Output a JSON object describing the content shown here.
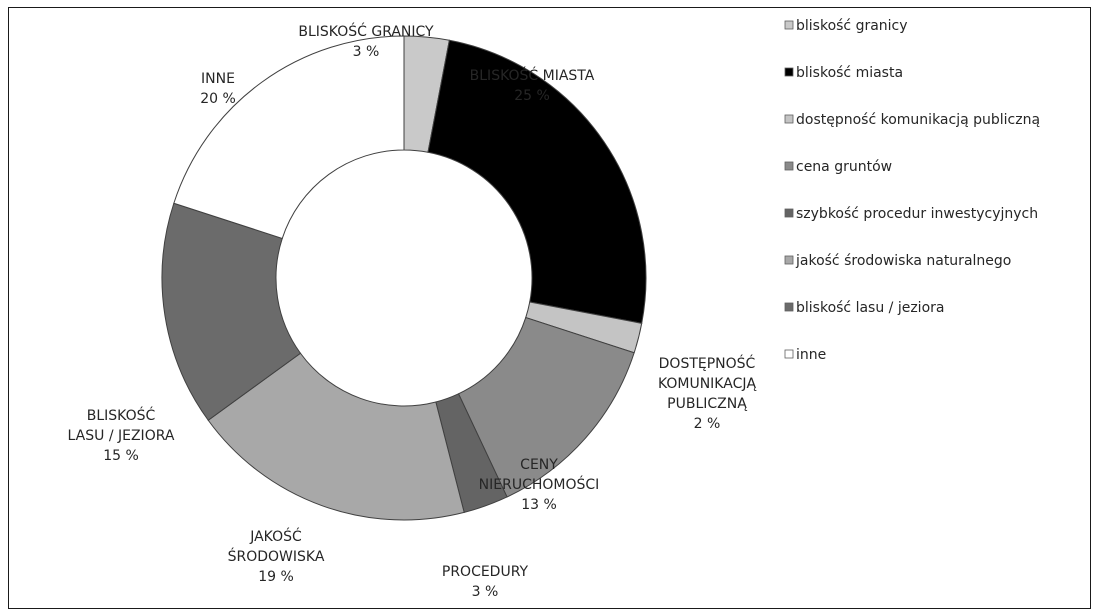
{
  "chart_data": {
    "type": "pie",
    "variant": "donut",
    "legend_position": "right",
    "slices": [
      {
        "key": "granicy",
        "label_lines": [
          "BLISKOŚĆ GRANICY",
          "3 %"
        ],
        "legend": "bliskość granicy",
        "value": 3,
        "color": "#c9c9c9"
      },
      {
        "key": "miasta",
        "label_lines": [
          "BLISKOŚĆ MIASTA",
          "25 %"
        ],
        "legend": "bliskość miasta",
        "value": 25,
        "color": "#000000"
      },
      {
        "key": "komunikacja",
        "label_lines": [
          "DOSTĘPNOŚĆ",
          "KOMUNIKACJĄ",
          "PUBLICZNĄ",
          "2 %"
        ],
        "legend": "dostępność komunikacją publiczną",
        "value": 2,
        "color": "#c4c4c4"
      },
      {
        "key": "ceny",
        "label_lines": [
          "CENY",
          "NIERUCHOMOŚCI",
          "13 %"
        ],
        "legend": "cena gruntów",
        "value": 13,
        "color": "#8a8a8a"
      },
      {
        "key": "procedury",
        "label_lines": [
          "PROCEDURY",
          "3 %"
        ],
        "legend": "szybkość procedur inwestycyjnych",
        "value": 3,
        "color": "#646464"
      },
      {
        "key": "srodowisko",
        "label_lines": [
          "JAKOŚĆ",
          "ŚRODOWISKA",
          "19 %"
        ],
        "legend": "jakość środowiska naturalnego",
        "value": 19,
        "color": "#a8a8a8"
      },
      {
        "key": "las",
        "label_lines": [
          "BLISKOŚĆ",
          "LASU / JEZIORA",
          "15 %"
        ],
        "legend": "bliskość lasu / jeziora",
        "value": 15,
        "color": "#6b6b6b"
      },
      {
        "key": "inne",
        "label_lines": [
          "INNE",
          "20 %"
        ],
        "legend": "inne",
        "value": 20,
        "color": "#ffffff"
      }
    ]
  }
}
